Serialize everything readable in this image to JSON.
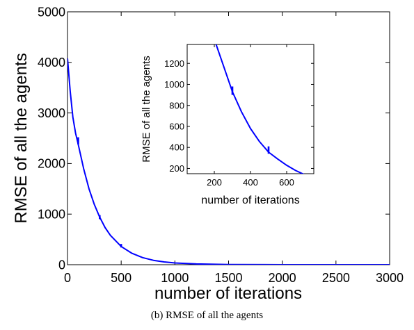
{
  "caption": "(b) RMSE of all the agents",
  "chart_data": [
    {
      "type": "line",
      "role": "main",
      "xlabel": "number of iterations",
      "ylabel": "RMSE of all the agents",
      "xlim": [
        0,
        3000
      ],
      "ylim": [
        0,
        5000
      ],
      "xticks": [
        0,
        500,
        1000,
        1500,
        2000,
        2500,
        3000
      ],
      "yticks": [
        0,
        1000,
        2000,
        3000,
        4000,
        5000
      ],
      "grid": false,
      "series": [
        {
          "color": "#0000ff",
          "x": [
            0,
            25,
            50,
            75,
            100,
            150,
            200,
            250,
            300,
            350,
            400,
            500,
            600,
            700,
            800,
            900,
            1000,
            1200,
            1500,
            2000,
            2500,
            3000
          ],
          "y": [
            4080,
            3430,
            2920,
            2600,
            2380,
            1900,
            1500,
            1190,
            940,
            735,
            580,
            360,
            225,
            140,
            87,
            55,
            35,
            15,
            4,
            0,
            0,
            0
          ]
        }
      ],
      "spikes": [
        {
          "x": 100,
          "y_low": 2380,
          "y_high": 2520
        },
        {
          "x": 300,
          "y_low": 900,
          "y_high": 980
        },
        {
          "x": 500,
          "y_low": 340,
          "y_high": 410
        }
      ]
    },
    {
      "type": "line",
      "role": "inset",
      "xlabel": "number of iterations",
      "ylabel": "RMSE of all the agents",
      "xlim": [
        50,
        750
      ],
      "ylim": [
        150,
        1380
      ],
      "xticks": [
        200,
        400,
        600
      ],
      "yticks": [
        200,
        400,
        600,
        800,
        1000,
        1200
      ],
      "grid": false,
      "series": [
        {
          "color": "#0000ff",
          "x": [
            210,
            250,
            300,
            350,
            400,
            450,
            500,
            550,
            600,
            650,
            700
          ],
          "y": [
            1380,
            1180,
            930,
            740,
            580,
            455,
            355,
            290,
            230,
            180,
            140
          ]
        }
      ],
      "spikes": [
        {
          "x": 300,
          "y_low": 900,
          "y_high": 980
        },
        {
          "x": 500,
          "y_low": 340,
          "y_high": 410
        }
      ]
    }
  ]
}
